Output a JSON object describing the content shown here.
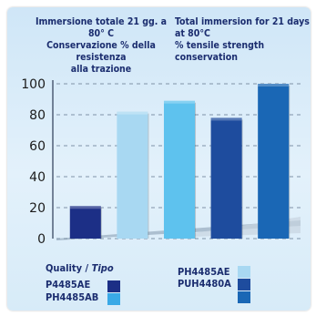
{
  "chart_data": {
    "type": "bar",
    "title_it": [
      "Immersione totale 21 gg. a 80° C",
      "Conservazione % della resistenza",
      "alla trazione"
    ],
    "title_en": [
      "Total immersion for 21 days at 80°C",
      "% tensile strength conservation"
    ],
    "categories": [
      "P4485AE",
      "PH4485AB",
      "PH4485AE",
      "PUH4480A",
      "PUH4480A"
    ],
    "values": [
      21,
      82,
      89,
      78,
      100
    ],
    "colors": [
      "#1c2f86",
      "#a8d8f2",
      "#5ec2ee",
      "#1e4c9e",
      "#1a67b5"
    ],
    "ylim": [
      0,
      100
    ],
    "yticks": [
      "0",
      "20",
      "40",
      "60",
      "80",
      "100"
    ],
    "grid": true
  },
  "legend": {
    "heading": "Quality / ",
    "heading_italic": "Tipo",
    "items": [
      {
        "label": "P4485AE",
        "color": "#1c2f86"
      },
      {
        "label": "PH4485AB",
        "color": "#3aa9e6"
      },
      {
        "label": "PH4485AE",
        "color": "#a8d8f2"
      },
      {
        "label": "PUH4480A",
        "color": "#1e4c9e"
      },
      {
        "label": "",
        "color": "#1a67b5"
      }
    ]
  }
}
